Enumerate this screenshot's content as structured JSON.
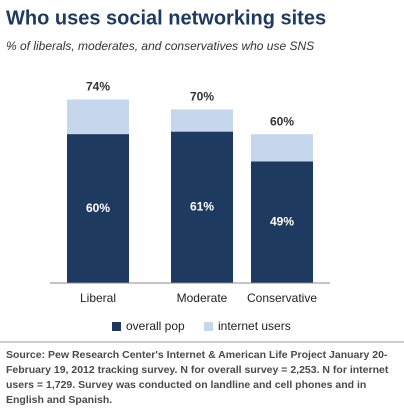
{
  "chart_data": {
    "type": "bar",
    "title": "Who uses social networking sites",
    "subtitle": "% of liberals, moderates, and conservatives who use SNS",
    "categories": [
      "Liberal",
      "Moderate",
      "Conservative"
    ],
    "series": [
      {
        "name": "overall pop",
        "color": "#1f3a60",
        "values": [
          60,
          61,
          49
        ],
        "value_labels": [
          "60%",
          "61%",
          "49%"
        ]
      },
      {
        "name": "internet users",
        "color": "#c6d6ec",
        "values": [
          74,
          70,
          60
        ],
        "value_labels": [
          "74%",
          "70%",
          "60%"
        ]
      }
    ],
    "legend": "bottom",
    "source": "Source: Pew Research Center's Internet & American Life Project January 20-February 19, 2012 tracking survey. N for overall survey = 2,253. N for internet users = 1,729. Survey was conducted on landline and cell phones and in English and Spanish."
  }
}
